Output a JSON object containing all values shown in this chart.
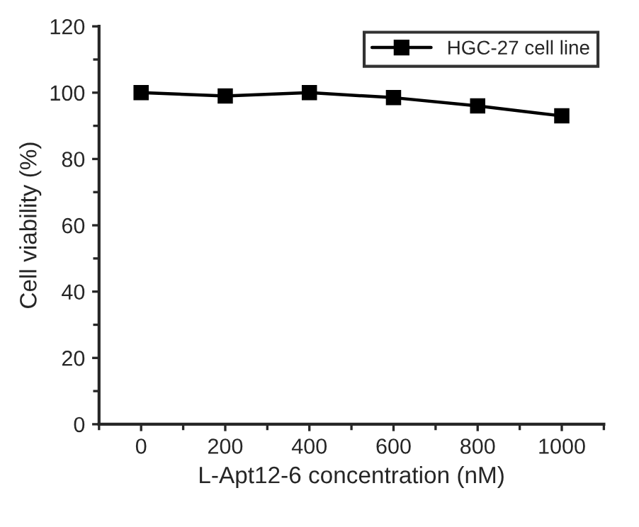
{
  "chart_data": {
    "type": "line",
    "xlabel": "L-Apt12-6 concentration (nM)",
    "ylabel": "Cell viability (%)",
    "x": [
      0,
      200,
      400,
      600,
      800,
      1000
    ],
    "series": [
      {
        "name": "HGC-27 cell line",
        "color": "#000000",
        "values": [
          100,
          99,
          100,
          98.5,
          96,
          93
        ]
      }
    ],
    "xlim": [
      -100,
      1100
    ],
    "xticks": [
      0,
      200,
      400,
      600,
      800,
      1000
    ],
    "ylim": [
      0,
      120
    ],
    "yticks": [
      0,
      20,
      40,
      60,
      80,
      100,
      120
    ],
    "marker": "square",
    "line_style": "solid",
    "legend": "top right",
    "grid": false
  }
}
